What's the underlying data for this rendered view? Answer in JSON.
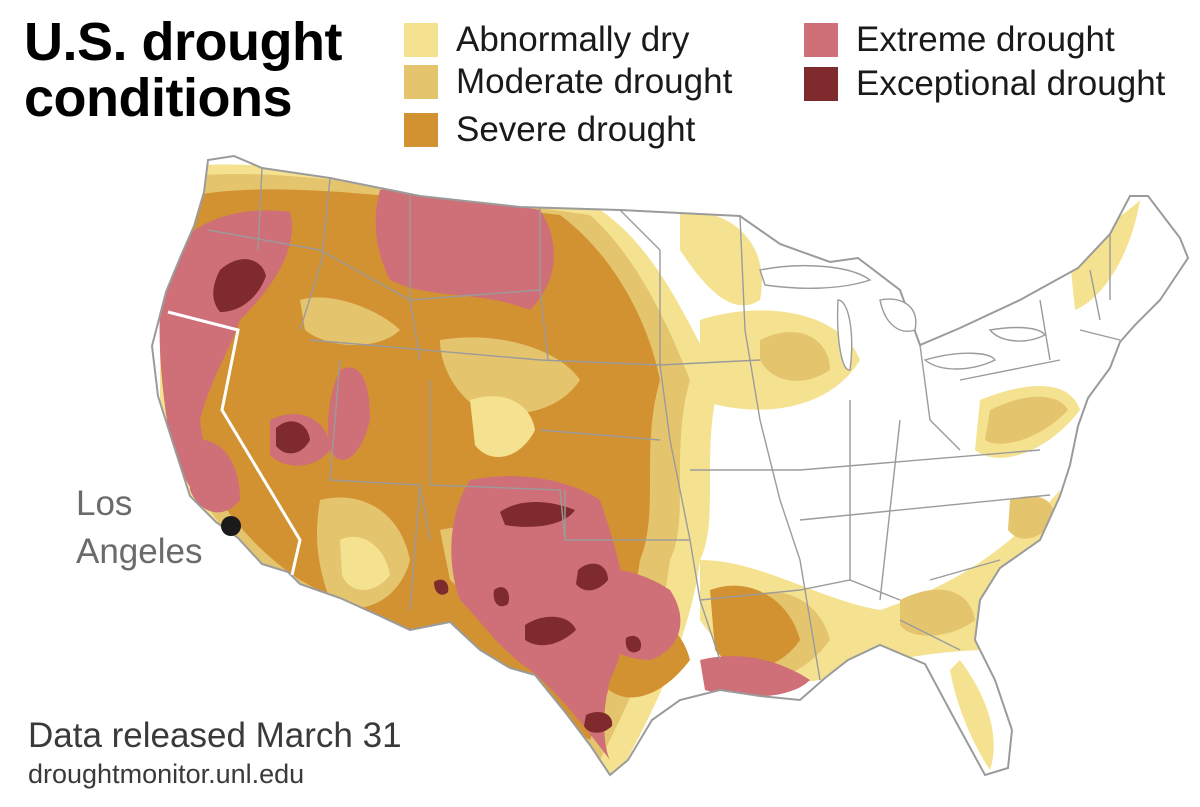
{
  "title": {
    "line1": "U.S. drought",
    "line2": "conditions"
  },
  "legend": [
    {
      "label": "Abnormally dry",
      "color": "#f5e290"
    },
    {
      "label": "Moderate drought",
      "color": "#e5c46e"
    },
    {
      "label": "Severe drought",
      "color": "#d39232"
    },
    {
      "label": "Extreme drought",
      "color": "#cf6f78"
    },
    {
      "label": "Exceptional drought",
      "color": "#7f2a2c"
    }
  ],
  "map": {
    "city": {
      "line1": "Los",
      "line2": "Angeles",
      "marker": "city-dot-icon"
    },
    "base_color": "#ffffff",
    "border_color": "#9b9b9b",
    "california_outline_color": "#ffffff"
  },
  "footer": {
    "released": "Data released March 31",
    "source": "droughtmonitor.unl.edu"
  }
}
